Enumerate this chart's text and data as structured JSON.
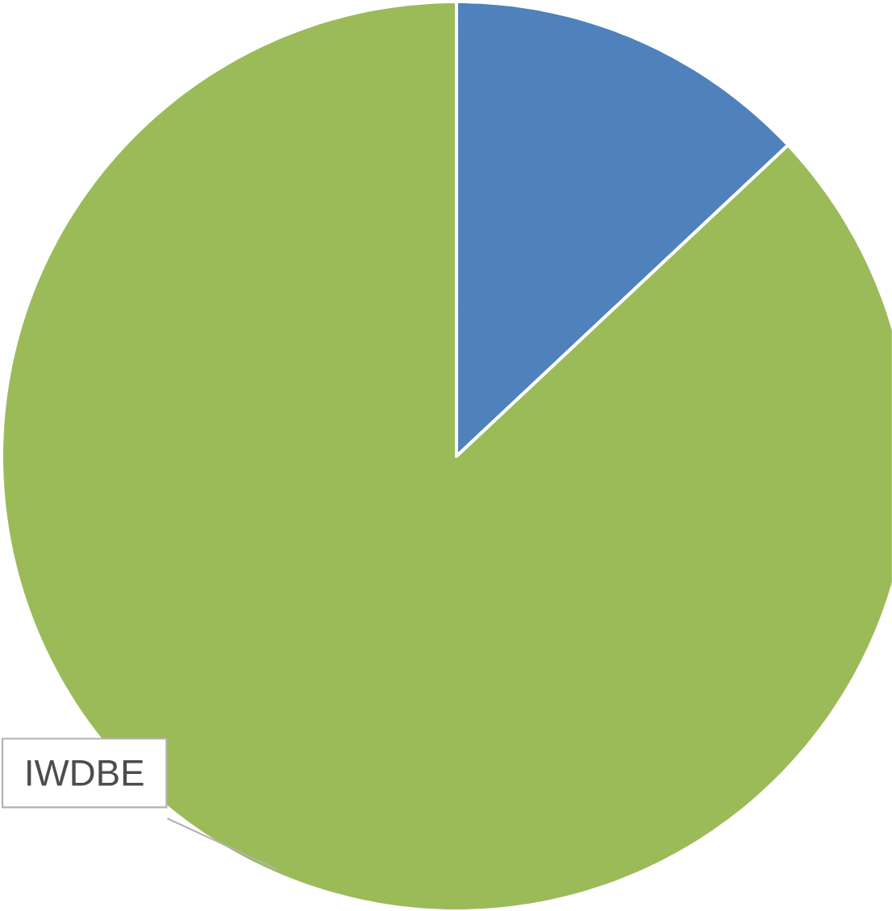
{
  "chart_data": {
    "type": "pie",
    "categories": [
      null,
      "IWDBE"
    ],
    "values": [
      13,
      87
    ],
    "colors": [
      "#4f81bd",
      "#9bbb59"
    ]
  }
}
